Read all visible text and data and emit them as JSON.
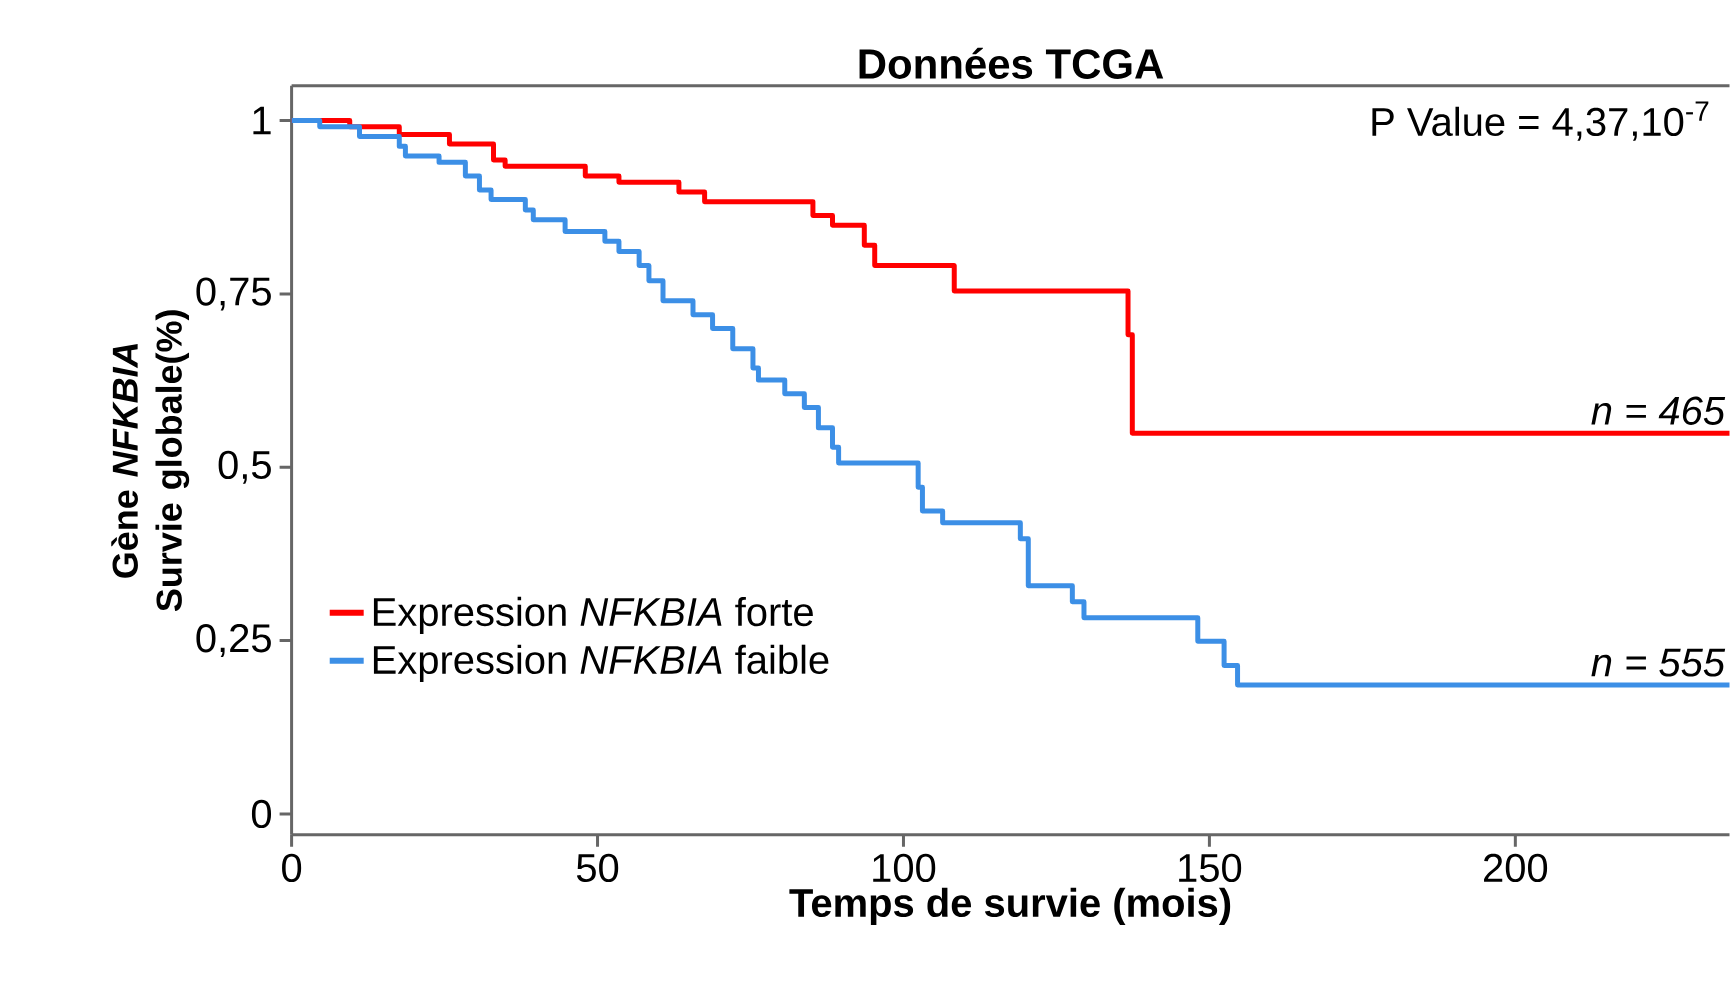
{
  "chart_data": {
    "type": "step",
    "title": "Données TCGA",
    "xlabel": "Temps de survie (mois)",
    "ylabel": "Gène *NFKBIA* Survie globale(%)",
    "series": [
      {
        "name": "Expression *NFKBIA* forte",
        "color": "#ff0000",
        "x": [
          0,
          9.5,
          17.6,
          25.8,
          33.0,
          34.9,
          48.0,
          53.5,
          63.3,
          67.5,
          85.2,
          88.4,
          93.6,
          95.3,
          108.3,
          136.7,
          137.4,
          235
        ],
        "values": [
          1,
          0.991,
          0.98,
          0.966,
          0.943,
          0.934,
          0.92,
          0.911,
          0.897,
          0.883,
          0.863,
          0.849,
          0.82,
          0.791,
          0.754,
          0.691,
          0.549,
          0.549
        ]
      },
      {
        "name": "Expression *NFKBIA* faible",
        "color": "#3c8fe6",
        "x": [
          0,
          4.6,
          11.1,
          17.6,
          18.6,
          24.1,
          28.4,
          30.7,
          32.6,
          38.2,
          39.5,
          44.7,
          51.2,
          53.5,
          56.8,
          58.4,
          60.7,
          65.6,
          68.8,
          72.1,
          75.4,
          76.3,
          80.6,
          83.8,
          86.1,
          88.4,
          89.4,
          102.4,
          103.1,
          106.4,
          119.1,
          120.4,
          127.6,
          129.5,
          148.1,
          152.4,
          154.6,
          235
        ],
        "values": [
          1,
          0.991,
          0.977,
          0.963,
          0.949,
          0.94,
          0.92,
          0.9,
          0.886,
          0.871,
          0.857,
          0.84,
          0.826,
          0.811,
          0.791,
          0.769,
          0.74,
          0.72,
          0.7,
          0.671,
          0.643,
          0.626,
          0.606,
          0.586,
          0.557,
          0.529,
          0.506,
          0.471,
          0.437,
          0.42,
          0.397,
          0.329,
          0.306,
          0.283,
          0.249,
          0.214,
          0.186,
          0.186
        ]
      }
    ],
    "annotations": [
      "P Value = 4,37,10$^{-7}$",
      "n = 465",
      "n = 555"
    ],
    "xlim": [
      0,
      235
    ],
    "ylim": [
      -0.03,
      1.05
    ],
    "xticks": [
      0,
      50,
      100,
      150,
      200
    ],
    "yticks": [
      0,
      {
        "value": 0.25,
        "label": "0,25"
      },
      {
        "value": 0.5,
        "label": "0,5"
      },
      {
        "value": 0.75,
        "label": "0,75"
      },
      1
    ],
    "legend": "bottom left"
  }
}
